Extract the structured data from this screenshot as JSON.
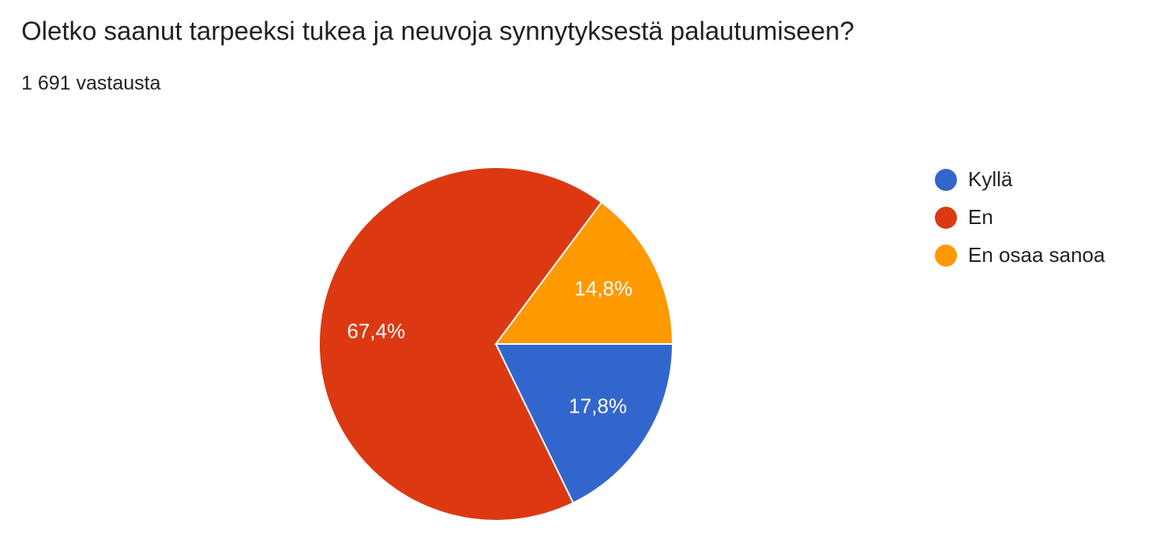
{
  "chart_data": {
    "type": "pie",
    "title": "Oletko saanut tarpeeksi tukea ja neuvoja synnytyksestä palautumiseen?",
    "subtitle": "1 691 vastausta",
    "categories": [
      "Kyllä",
      "En",
      "En osaa sanoa"
    ],
    "values": [
      17.8,
      67.4,
      14.8
    ],
    "value_labels": [
      "17,8%",
      "67,4%",
      "14,8%"
    ],
    "colors": [
      "#3366cc",
      "#dc3912",
      "#ff9900"
    ],
    "legend": "right"
  }
}
